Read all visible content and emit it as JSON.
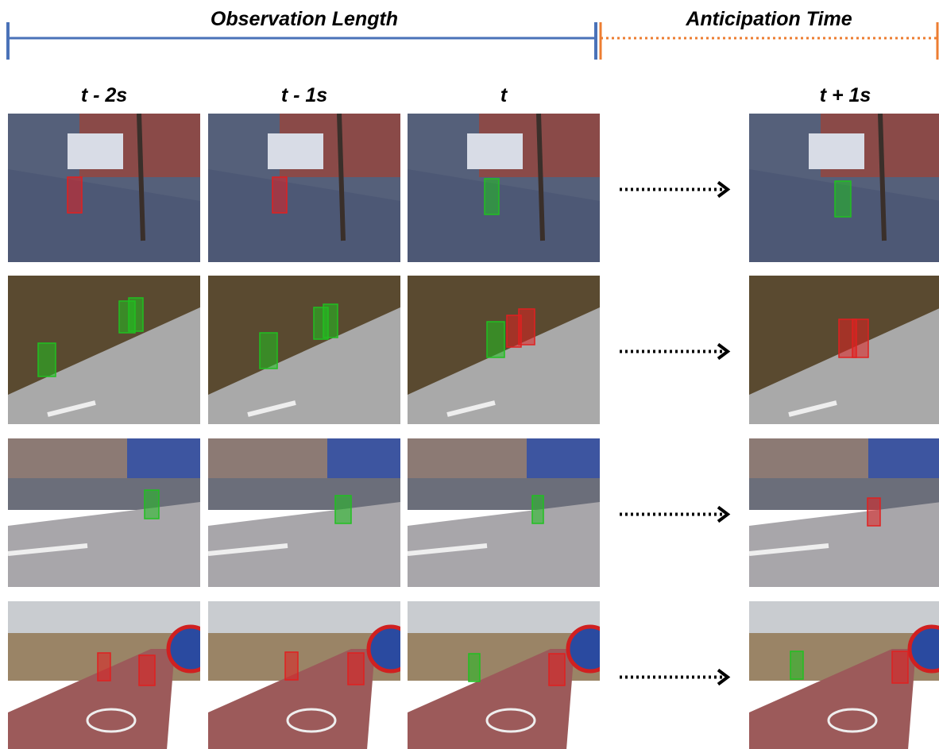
{
  "header": {
    "observation_label": "Observation Length",
    "anticipation_label": "Anticipation Time"
  },
  "columns": [
    "t - 2s",
    "t - 1s",
    "t",
    "t + 1s"
  ]
}
